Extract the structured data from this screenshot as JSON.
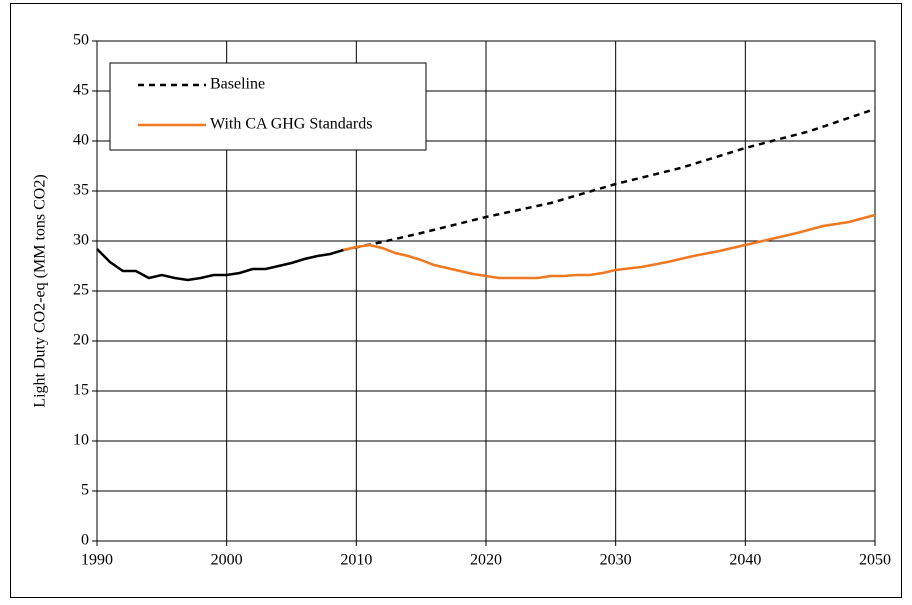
{
  "chart_data": {
    "type": "line",
    "y_label": "Light Duty CO2-eq (MM tons CO2)",
    "xlim": [
      1990,
      2050
    ],
    "xticks": [
      1990,
      2000,
      2010,
      2020,
      2030,
      2040,
      2050
    ],
    "ylim": [
      0,
      50
    ],
    "yticks": [
      0,
      5,
      10,
      15,
      20,
      25,
      30,
      35,
      40,
      45,
      50
    ],
    "grid": true,
    "legend": "upper left",
    "series": [
      {
        "color": "#000000",
        "dash": false,
        "x": [
          1990,
          1991,
          1992,
          1993,
          1994,
          1995,
          1996,
          1997,
          1998,
          1999,
          2000,
          2001,
          2002,
          2003,
          2004,
          2005,
          2006,
          2007,
          2008,
          2009
        ],
        "values": [
          29.2,
          27.9,
          27.0,
          27.0,
          26.3,
          26.6,
          26.3,
          26.1,
          26.3,
          26.6,
          26.6,
          26.8,
          27.2,
          27.2,
          27.5,
          27.8,
          28.2,
          28.5,
          28.7,
          29.1
        ]
      },
      {
        "name": "Baseline",
        "color": "#000000",
        "dash": true,
        "x": [
          2009,
          2012,
          2015,
          2020,
          2025,
          2030,
          2035,
          2040,
          2045,
          2050
        ],
        "values": [
          29.1,
          29.9,
          30.8,
          32.4,
          33.8,
          35.7,
          37.3,
          39.3,
          41.0,
          43.2
        ]
      },
      {
        "name": "With CA GHG Standards",
        "color": "#f07820",
        "dash": false,
        "x": [
          2009,
          2010,
          2011,
          2012,
          2013,
          2014,
          2015,
          2016,
          2017,
          2018,
          2019,
          2020,
          2021,
          2022,
          2023,
          2024,
          2025,
          2026,
          2027,
          2028,
          2029,
          2030,
          2032,
          2034,
          2036,
          2038,
          2040,
          2042,
          2044,
          2046,
          2048,
          2050
        ],
        "values": [
          29.1,
          29.4,
          29.6,
          29.3,
          28.8,
          28.5,
          28.1,
          27.6,
          27.3,
          27.0,
          26.7,
          26.5,
          26.3,
          26.3,
          26.3,
          26.3,
          26.5,
          26.5,
          26.6,
          26.6,
          26.8,
          27.1,
          27.4,
          27.9,
          28.5,
          29.0,
          29.6,
          30.2,
          30.8,
          31.5,
          31.9,
          32.6
        ]
      }
    ]
  }
}
